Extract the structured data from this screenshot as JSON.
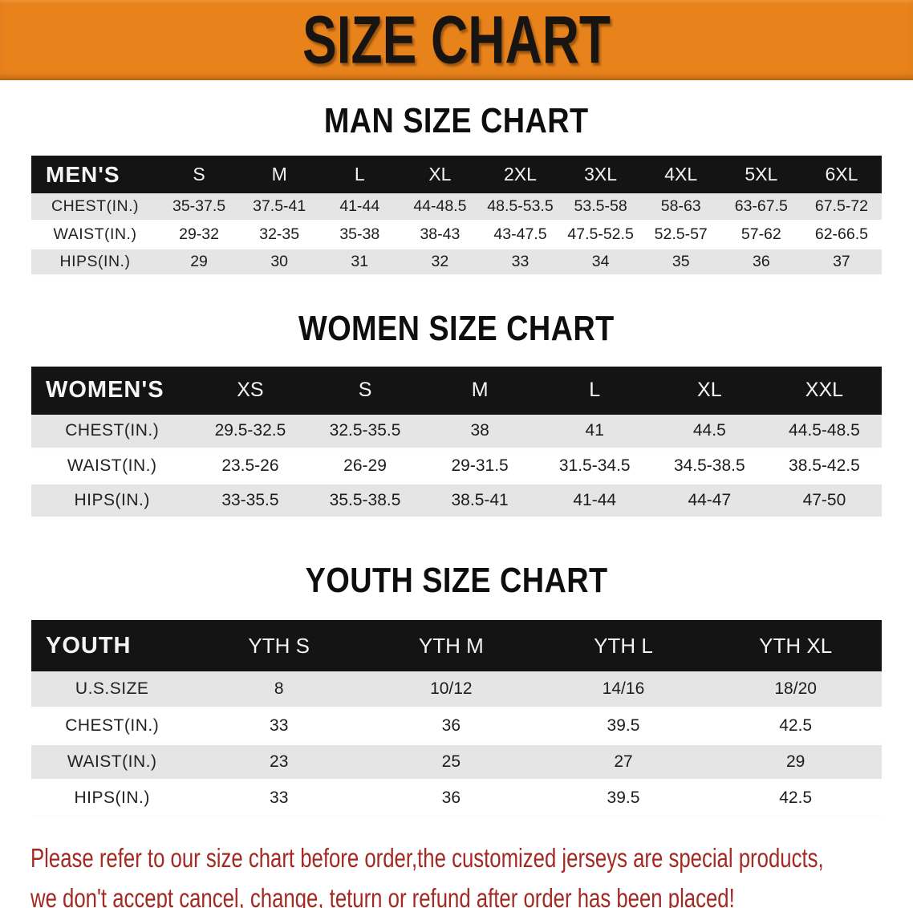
{
  "banner": {
    "title": "SIZE CHART",
    "bg_color": "#e8821b"
  },
  "colors": {
    "header_bar": "#141414",
    "row_gray": "#e5e5e5",
    "row_white": "#ffffff",
    "footer_text": "#a32a23"
  },
  "sections": [
    {
      "title": "MAN SIZE CHART",
      "header_label": "MEN'S",
      "columns": [
        "S",
        "M",
        "L",
        "XL",
        "2XL",
        "3XL",
        "4XL",
        "5XL",
        "6XL"
      ],
      "rows": [
        {
          "label": "CHEST(IN.)",
          "values": [
            "35-37.5",
            "37.5-41",
            "41-44",
            "44-48.5",
            "48.5-53.5",
            "53.5-58",
            "58-63",
            "63-67.5",
            "67.5-72"
          ]
        },
        {
          "label": "WAIST(IN.)",
          "values": [
            "29-32",
            "32-35",
            "35-38",
            "38-43",
            "43-47.5",
            "47.5-52.5",
            "52.5-57",
            "57-62",
            "62-66.5"
          ]
        },
        {
          "label": "HIPS(IN.)",
          "values": [
            "29",
            "30",
            "31",
            "32",
            "33",
            "34",
            "35",
            "36",
            "37"
          ]
        }
      ]
    },
    {
      "title": "WOMEN SIZE CHART",
      "header_label": "WOMEN'S",
      "columns": [
        "XS",
        "S",
        "M",
        "L",
        "XL",
        "XXL"
      ],
      "rows": [
        {
          "label": "CHEST(IN.)",
          "values": [
            "29.5-32.5",
            "32.5-35.5",
            "38",
            "41",
            "44.5",
            "44.5-48.5"
          ]
        },
        {
          "label": "WAIST(IN.)",
          "values": [
            "23.5-26",
            "26-29",
            "29-31.5",
            "31.5-34.5",
            "34.5-38.5",
            "38.5-42.5"
          ]
        },
        {
          "label": "HIPS(IN.)",
          "values": [
            "33-35.5",
            "35.5-38.5",
            "38.5-41",
            "41-44",
            "44-47",
            "47-50"
          ]
        }
      ]
    },
    {
      "title": "YOUTH SIZE CHART",
      "header_label": "YOUTH",
      "columns": [
        "YTH S",
        "YTH M",
        "YTH L",
        "YTH XL"
      ],
      "rows": [
        {
          "label": "U.S.SIZE",
          "values": [
            "8",
            "10/12",
            "14/16",
            "18/20"
          ]
        },
        {
          "label": "CHEST(IN.)",
          "values": [
            "33",
            "36",
            "39.5",
            "42.5"
          ]
        },
        {
          "label": "WAIST(IN.)",
          "values": [
            "23",
            "25",
            "27",
            "29"
          ]
        },
        {
          "label": "HIPS(IN.)",
          "values": [
            "33",
            "36",
            "39.5",
            "42.5"
          ]
        }
      ]
    }
  ],
  "footer": {
    "line1": "Please refer to our size chart before order,the customized jerseys are special products,",
    "line2": "we don't accept cancel, change, teturn or refund after order has been placed!"
  }
}
